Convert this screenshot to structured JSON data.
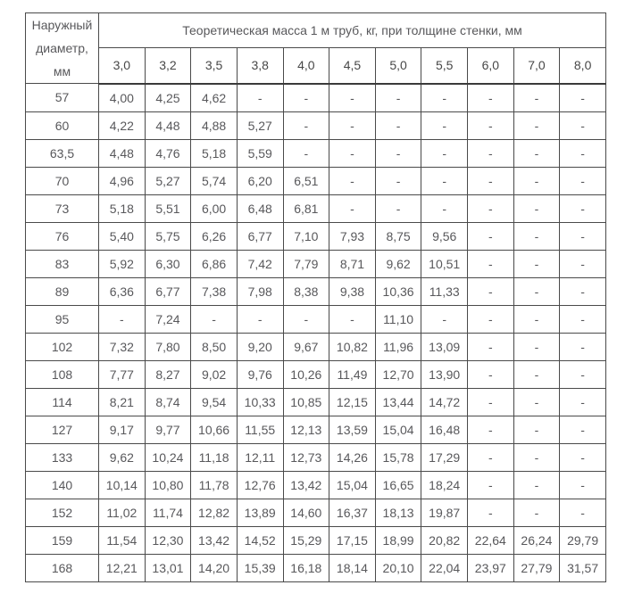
{
  "table": {
    "diameter_header": "Наружный диаметр, мм",
    "mass_header": "Теоретическая масса 1 м труб, кг, при толщине стенки, мм",
    "thickness_columns": [
      "3,0",
      "3,2",
      "3,5",
      "3,8",
      "4,0",
      "4,5",
      "5,0",
      "5,5",
      "6,0",
      "7,0",
      "8,0"
    ],
    "empty_marker": "-",
    "colors": {
      "border": "#4a4a4a",
      "thick_separator": "#3a3a3a",
      "header_text": "#474747",
      "data_text": "#58585b",
      "background": "#ffffff"
    },
    "rows": [
      {
        "diameter": "57",
        "values": [
          "4,00",
          "4,25",
          "4,62",
          "-",
          "-",
          "-",
          "-",
          "-",
          "-",
          "-",
          "-"
        ]
      },
      {
        "diameter": "60",
        "values": [
          "4,22",
          "4,48",
          "4,88",
          "5,27",
          "-",
          "-",
          "-",
          "-",
          "-",
          "-",
          "-"
        ]
      },
      {
        "diameter": "63,5",
        "values": [
          "4,48",
          "4,76",
          "5,18",
          "5,59",
          "-",
          "-",
          "-",
          "-",
          "-",
          "-",
          "-"
        ]
      },
      {
        "diameter": "70",
        "values": [
          "4,96",
          "5,27",
          "5,74",
          "6,20",
          "6,51",
          "-",
          "-",
          "-",
          "-",
          "-",
          "-"
        ]
      },
      {
        "diameter": "73",
        "values": [
          "5,18",
          "5,51",
          "6,00",
          "6,48",
          "6,81",
          "-",
          "-",
          "-",
          "-",
          "-",
          "-"
        ]
      },
      {
        "diameter": "76",
        "values": [
          "5,40",
          "5,75",
          "6,26",
          "6,77",
          "7,10",
          "7,93",
          "8,75",
          "9,56",
          "-",
          "-",
          "-"
        ]
      },
      {
        "diameter": "83",
        "values": [
          "5,92",
          "6,30",
          "6,86",
          "7,42",
          "7,79",
          "8,71",
          "9,62",
          "10,51",
          "-",
          "-",
          "-"
        ]
      },
      {
        "diameter": "89",
        "values": [
          "6,36",
          "6,77",
          "7,38",
          "7,98",
          "8,38",
          "9,38",
          "10,36",
          "11,33",
          "-",
          "-",
          "-"
        ]
      },
      {
        "diameter": "95",
        "values": [
          "-",
          "7,24",
          "-",
          "-",
          "-",
          "-",
          "11,10",
          "-",
          "-",
          "-",
          "-"
        ]
      },
      {
        "diameter": "102",
        "values": [
          "7,32",
          "7,80",
          "8,50",
          "9,20",
          "9,67",
          "10,82",
          "11,96",
          "13,09",
          "-",
          "-",
          "-"
        ]
      },
      {
        "diameter": "108",
        "values": [
          "7,77",
          "8,27",
          "9,02",
          "9,76",
          "10,26",
          "11,49",
          "12,70",
          "13,90",
          "-",
          "-",
          "-"
        ]
      },
      {
        "diameter": "114",
        "values": [
          "8,21",
          "8,74",
          "9,54",
          "10,33",
          "10,85",
          "12,15",
          "13,44",
          "14,72",
          "-",
          "-",
          "-"
        ]
      },
      {
        "diameter": "127",
        "values": [
          "9,17",
          "9,77",
          "10,66",
          "11,55",
          "12,13",
          "13,59",
          "15,04",
          "16,48",
          "-",
          "-",
          "-"
        ]
      },
      {
        "diameter": "133",
        "values": [
          "9,62",
          "10,24",
          "11,18",
          "12,11",
          "12,73",
          "14,26",
          "15,78",
          "17,29",
          "-",
          "-",
          "-"
        ]
      },
      {
        "diameter": "140",
        "values": [
          "10,14",
          "10,80",
          "11,78",
          "12,76",
          "13,42",
          "15,04",
          "16,65",
          "18,24",
          "-",
          "-",
          "-"
        ]
      },
      {
        "diameter": "152",
        "values": [
          "11,02",
          "11,74",
          "12,82",
          "13,89",
          "14,60",
          "16,37",
          "18,13",
          "19,87",
          "-",
          "-",
          "-"
        ]
      },
      {
        "diameter": "159",
        "values": [
          "11,54",
          "12,30",
          "13,42",
          "14,52",
          "15,29",
          "17,15",
          "18,99",
          "20,82",
          "22,64",
          "26,24",
          "29,79"
        ]
      },
      {
        "diameter": "168",
        "values": [
          "12,21",
          "13,01",
          "14,20",
          "15,39",
          "16,18",
          "18,14",
          "20,10",
          "22,04",
          "23,97",
          "27,79",
          "31,57"
        ]
      }
    ]
  }
}
